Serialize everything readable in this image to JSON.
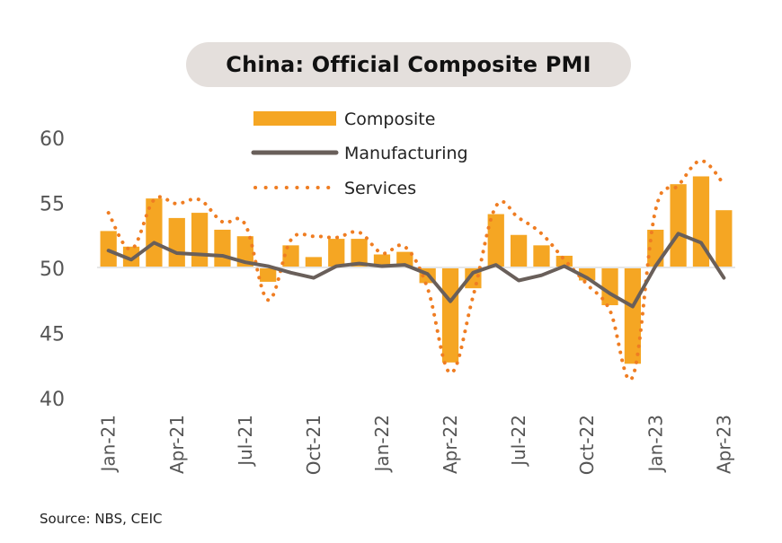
{
  "title": "China: Official Composite PMI",
  "source": "Source: NBS, CEIC",
  "colors": {
    "composite": "#f5a623",
    "manufacturing": "#695f5a",
    "services": "#ef7d22",
    "baseline": "#e6e6e6",
    "pill": "#e4dfdc"
  },
  "chart_data": {
    "type": "bar",
    "ylim": [
      40,
      60
    ],
    "yticks": [
      40,
      45,
      50,
      55,
      60
    ],
    "baseline": 50,
    "grid": false,
    "legend_placement": "top-center",
    "x": [
      "Jan-21",
      "Feb-21",
      "Mar-21",
      "Apr-21",
      "May-21",
      "Jun-21",
      "Jul-21",
      "Aug-21",
      "Sep-21",
      "Oct-21",
      "Nov-21",
      "Dec-21",
      "Jan-22",
      "Feb-22",
      "Mar-22",
      "Apr-22",
      "May-22",
      "Jun-22",
      "Jul-22",
      "Aug-22",
      "Sep-22",
      "Oct-22",
      "Nov-22",
      "Dec-22",
      "Jan-23",
      "Feb-23",
      "Mar-23",
      "Apr-23"
    ],
    "xtick_labels": [
      "Jan-21",
      "Apr-21",
      "Jul-21",
      "Oct-21",
      "Jan-22",
      "Apr-22",
      "Jul-22",
      "Oct-22",
      "Jan-23",
      "Apr-23"
    ],
    "series": [
      {
        "name": "Composite",
        "type": "bar",
        "values": [
          52.8,
          51.6,
          55.3,
          53.8,
          54.2,
          52.9,
          52.4,
          48.9,
          51.7,
          50.8,
          52.2,
          52.2,
          51.0,
          51.2,
          48.8,
          42.7,
          48.4,
          54.1,
          52.5,
          51.7,
          50.9,
          49.0,
          47.1,
          42.6,
          52.9,
          56.4,
          57.0,
          54.4
        ]
      },
      {
        "name": "Manufacturing",
        "type": "line",
        "values": [
          51.3,
          50.6,
          51.9,
          51.1,
          51.0,
          50.9,
          50.4,
          50.1,
          49.6,
          49.2,
          50.1,
          50.3,
          50.1,
          50.2,
          49.5,
          47.4,
          49.6,
          50.2,
          49.0,
          49.4,
          50.1,
          49.2,
          48.0,
          47.0,
          50.1,
          52.6,
          51.9,
          49.2
        ]
      },
      {
        "name": "Services",
        "type": "dotted-line",
        "values": [
          54.2,
          51.4,
          55.2,
          54.9,
          55.2,
          53.5,
          53.3,
          47.5,
          52.1,
          52.4,
          52.3,
          52.7,
          51.1,
          51.6,
          48.4,
          41.9,
          47.8,
          54.7,
          53.8,
          52.6,
          50.6,
          48.7,
          46.7,
          41.6,
          54.4,
          56.3,
          58.2,
          56.4
        ]
      }
    ]
  }
}
